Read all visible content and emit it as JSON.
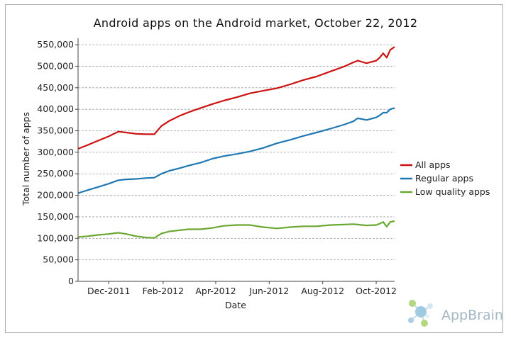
{
  "chart_data": {
    "type": "line",
    "title": "Android apps on the Android market, October 22, 2012",
    "xlabel": "Date",
    "ylabel": "Total number of apps",
    "x_tick_labels": [
      "Dec-2011",
      "Feb-2012",
      "Apr-2012",
      "Jun-2012",
      "Aug-2012",
      "Oct-2012"
    ],
    "x_ticks": [
      "2011-12-01",
      "2012-02-01",
      "2012-04-01",
      "2012-06-01",
      "2012-08-01",
      "2012-10-01"
    ],
    "xlim": [
      "2011-10-27",
      "2012-10-22"
    ],
    "y_tick_labels": [
      "0",
      "50,000",
      "100,000",
      "150,000",
      "200,000",
      "250,000",
      "300,000",
      "350,000",
      "400,000",
      "450,000",
      "500,000",
      "550,000"
    ],
    "ylim": [
      0,
      565000
    ],
    "grid": "horizontal dashed",
    "legend_position": "right",
    "series": [
      {
        "name": "All apps",
        "color": "#cc1111",
        "x": [
          "2011-10-27",
          "2011-11-07",
          "2011-11-20",
          "2011-12-01",
          "2011-12-12",
          "2011-12-21",
          "2012-01-01",
          "2012-01-12",
          "2012-01-22",
          "2012-01-30",
          "2012-02-08",
          "2012-02-20",
          "2012-03-01",
          "2012-03-15",
          "2012-03-28",
          "2012-04-10",
          "2012-04-25",
          "2012-05-10",
          "2012-05-25",
          "2012-06-10",
          "2012-06-25",
          "2012-07-10",
          "2012-07-25",
          "2012-08-10",
          "2012-08-25",
          "2012-09-05",
          "2012-09-10",
          "2012-09-20",
          "2012-10-01",
          "2012-10-05",
          "2012-10-09",
          "2012-10-13",
          "2012-10-17",
          "2012-10-22"
        ],
        "values": [
          308000,
          317000,
          328000,
          337000,
          348000,
          346000,
          343000,
          342000,
          342000,
          361000,
          373000,
          385000,
          393000,
          403000,
          412000,
          420000,
          428000,
          437000,
          443000,
          449000,
          458000,
          468000,
          476000,
          488000,
          499000,
          509000,
          513000,
          507000,
          513000,
          520000,
          530000,
          520000,
          538000,
          545000
        ]
      },
      {
        "name": "Regular apps",
        "color": "#1f78b4",
        "x": [
          "2011-10-27",
          "2011-11-07",
          "2011-11-20",
          "2011-12-01",
          "2011-12-12",
          "2011-12-21",
          "2012-01-01",
          "2012-01-12",
          "2012-01-22",
          "2012-01-30",
          "2012-02-08",
          "2012-02-20",
          "2012-03-01",
          "2012-03-15",
          "2012-03-28",
          "2012-04-10",
          "2012-04-25",
          "2012-05-10",
          "2012-05-25",
          "2012-06-10",
          "2012-06-25",
          "2012-07-10",
          "2012-07-25",
          "2012-08-10",
          "2012-08-25",
          "2012-09-05",
          "2012-09-10",
          "2012-09-20",
          "2012-10-01",
          "2012-10-05",
          "2012-10-09",
          "2012-10-13",
          "2012-10-17",
          "2012-10-22"
        ],
        "values": [
          205000,
          212000,
          220000,
          227000,
          235000,
          237000,
          238000,
          240000,
          241000,
          250000,
          257000,
          263000,
          269000,
          276000,
          285000,
          291000,
          296000,
          302000,
          310000,
          321000,
          329000,
          338000,
          346000,
          355000,
          364000,
          372000,
          379000,
          375000,
          381000,
          386000,
          392000,
          392000,
          400000,
          403000
        ]
      },
      {
        "name": "Low quality apps",
        "color": "#6aa832",
        "x": [
          "2011-10-27",
          "2011-11-07",
          "2011-11-20",
          "2011-12-01",
          "2011-12-12",
          "2011-12-21",
          "2012-01-01",
          "2012-01-12",
          "2012-01-22",
          "2012-01-30",
          "2012-02-08",
          "2012-02-20",
          "2012-03-01",
          "2012-03-15",
          "2012-03-28",
          "2012-04-10",
          "2012-04-25",
          "2012-05-10",
          "2012-05-25",
          "2012-06-10",
          "2012-06-25",
          "2012-07-10",
          "2012-07-25",
          "2012-08-10",
          "2012-08-25",
          "2012-09-05",
          "2012-09-10",
          "2012-09-20",
          "2012-10-01",
          "2012-10-05",
          "2012-10-09",
          "2012-10-13",
          "2012-10-17",
          "2012-10-22"
        ],
        "values": [
          103000,
          105000,
          108000,
          110000,
          113000,
          110000,
          105000,
          102000,
          101000,
          111000,
          116000,
          119000,
          121000,
          121000,
          124000,
          129000,
          131000,
          131000,
          126000,
          123000,
          126000,
          128000,
          128000,
          131000,
          132000,
          133000,
          132000,
          130000,
          131000,
          134000,
          138000,
          127000,
          138000,
          140000
        ]
      }
    ]
  },
  "logo": {
    "text": "AppBrain",
    "color": "#a3b8c4"
  }
}
